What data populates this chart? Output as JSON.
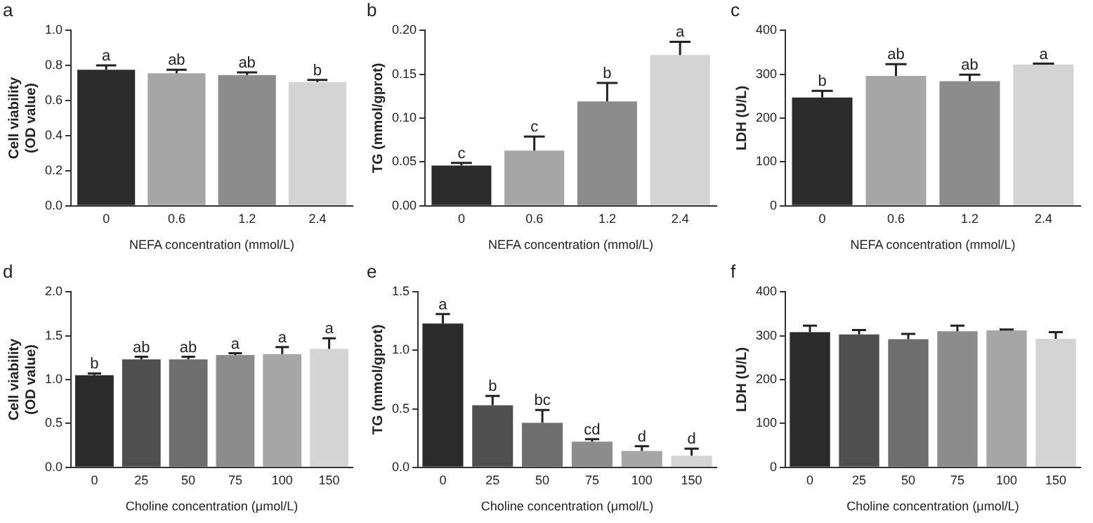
{
  "chart_data": [
    {
      "type": "bar",
      "title": "a",
      "categories": [
        "0",
        "0.6",
        "1.2",
        "2.4"
      ],
      "xlabel": "NEFA concentration (mmol/L)",
      "ylabel": "Cell viability\n(OD value)",
      "ylim": [
        0,
        1
      ],
      "yticks": [
        {
          "value": 0,
          "label": "0.0"
        },
        0.2,
        0.4,
        0.6,
        0.8,
        {
          "value": 1,
          "label": "1.0"
        }
      ],
      "grid": false,
      "series": [
        {
          "colors": [
            "#2b2b2b",
            "#a6a6a6",
            "#8c8c8c",
            "#d4d4d4"
          ],
          "values": [
            0.775,
            0.755,
            0.745,
            0.705
          ],
          "errors": [
            0.025,
            0.02,
            0.015,
            0.012
          ]
        }
      ],
      "annotations": [
        {
          "text": "a",
          "x": "0",
          "y": 0.8
        },
        {
          "text": "ab",
          "x": "0.6",
          "y": 0.775
        },
        {
          "text": "ab",
          "x": "1.2",
          "y": 0.76
        },
        {
          "text": "b",
          "x": "2.4",
          "y": 0.717
        }
      ]
    },
    {
      "type": "bar",
      "title": "b",
      "categories": [
        "0",
        "0.6",
        "1.2",
        "2.4"
      ],
      "xlabel": "NEFA concentration (mmol/L)",
      "ylabel": "TG (mmol/gprot)",
      "ylim": [
        0,
        0.2
      ],
      "yticks": [
        {
          "value": 0,
          "label": "0.00"
        },
        0.05,
        {
          "value": 0.1,
          "label": "0.10"
        },
        0.15,
        {
          "value": 0.2,
          "label": "0.20"
        }
      ],
      "grid": false,
      "series": [
        {
          "colors": [
            "#2b2b2b",
            "#a6a6a6",
            "#8c8c8c",
            "#d4d4d4"
          ],
          "values": [
            0.046,
            0.063,
            0.119,
            0.172
          ],
          "errors": [
            0.003,
            0.016,
            0.021,
            0.015
          ]
        }
      ],
      "annotations": [
        {
          "text": "c",
          "x": "0",
          "y": 0.049
        },
        {
          "text": "c",
          "x": "0.6",
          "y": 0.079
        },
        {
          "text": "b",
          "x": "1.2",
          "y": 0.14
        },
        {
          "text": "a",
          "x": "2.4",
          "y": 0.187
        }
      ]
    },
    {
      "type": "bar",
      "title": "c",
      "categories": [
        "0",
        "0.6",
        "1.2",
        "2.4"
      ],
      "xlabel": "NEFA concentration (mmol/L)",
      "ylabel": "LDH (U/L)",
      "ylim": [
        0,
        400
      ],
      "yticks": [
        0,
        100,
        200,
        300,
        400
      ],
      "grid": false,
      "series": [
        {
          "colors": [
            "#2b2b2b",
            "#a6a6a6",
            "#8c8c8c",
            "#d4d4d4"
          ],
          "values": [
            247,
            296,
            284,
            322
          ],
          "errors": [
            15,
            27,
            15,
            2
          ]
        }
      ],
      "annotations": [
        {
          "text": "b",
          "x": "0",
          "y": 262
        },
        {
          "text": "ab",
          "x": "0.6",
          "y": 323
        },
        {
          "text": "ab",
          "x": "1.2",
          "y": 299
        },
        {
          "text": "a",
          "x": "2.4",
          "y": 324
        }
      ]
    },
    {
      "type": "bar",
      "title": "d",
      "categories": [
        "0",
        "25",
        "50",
        "75",
        "100",
        "150"
      ],
      "xlabel": "Choline concentration (μmol/L)",
      "ylabel": "Cell viability\n(OD value)",
      "ylim": [
        0,
        2
      ],
      "yticks": [
        {
          "value": 0,
          "label": "0.0"
        },
        0.5,
        {
          "value": 1,
          "label": "1.0"
        },
        1.5,
        {
          "value": 2,
          "label": "2.0"
        }
      ],
      "grid": false,
      "series": [
        {
          "colors": [
            "#2b2b2b",
            "#4f4f4f",
            "#6e6e6e",
            "#8c8c8c",
            "#a6a6a6",
            "#d4d4d4"
          ],
          "values": [
            1.05,
            1.23,
            1.23,
            1.28,
            1.29,
            1.35
          ],
          "errors": [
            0.02,
            0.03,
            0.03,
            0.02,
            0.08,
            0.12
          ]
        }
      ],
      "annotations": [
        {
          "text": "b",
          "x": "0",
          "y": 1.07
        },
        {
          "text": "ab",
          "x": "25",
          "y": 1.26
        },
        {
          "text": "ab",
          "x": "50",
          "y": 1.26
        },
        {
          "text": "a",
          "x": "75",
          "y": 1.3
        },
        {
          "text": "a",
          "x": "100",
          "y": 1.37
        },
        {
          "text": "a",
          "x": "150",
          "y": 1.47
        }
      ]
    },
    {
      "type": "bar",
      "title": "e",
      "categories": [
        "0",
        "25",
        "50",
        "75",
        "100",
        "150"
      ],
      "xlabel": "Choline concentration (μmol/L)",
      "ylabel": "TG (mmol/gprot)",
      "ylim": [
        0,
        1.5
      ],
      "yticks": [
        {
          "value": 0,
          "label": "0.0"
        },
        0.5,
        {
          "value": 1,
          "label": "1.0"
        },
        1.5
      ],
      "grid": false,
      "series": [
        {
          "colors": [
            "#2b2b2b",
            "#4f4f4f",
            "#6e6e6e",
            "#8c8c8c",
            "#a6a6a6",
            "#d4d4d4"
          ],
          "values": [
            1.23,
            0.53,
            0.38,
            0.22,
            0.14,
            0.1
          ],
          "errors": [
            0.08,
            0.08,
            0.11,
            0.02,
            0.04,
            0.06
          ]
        }
      ],
      "annotations": [
        {
          "text": "a",
          "x": "0",
          "y": 1.31
        },
        {
          "text": "b",
          "x": "25",
          "y": 0.61
        },
        {
          "text": "bc",
          "x": "50",
          "y": 0.49
        },
        {
          "text": "cd",
          "x": "75",
          "y": 0.24
        },
        {
          "text": "d",
          "x": "100",
          "y": 0.18
        },
        {
          "text": "d",
          "x": "150",
          "y": 0.16
        }
      ]
    },
    {
      "type": "bar",
      "title": "f",
      "categories": [
        "0",
        "25",
        "50",
        "75",
        "100",
        "150"
      ],
      "xlabel": "Choline concentration (μmol/L)",
      "ylabel": "LDH (U/L)",
      "ylim": [
        0,
        400
      ],
      "yticks": [
        0,
        100,
        200,
        300,
        400
      ],
      "grid": false,
      "series": [
        {
          "colors": [
            "#2b2b2b",
            "#4f4f4f",
            "#6e6e6e",
            "#8c8c8c",
            "#a6a6a6",
            "#d4d4d4"
          ],
          "values": [
            308,
            303,
            292,
            310,
            312,
            293
          ],
          "errors": [
            15,
            10,
            12,
            13,
            2,
            15
          ]
        }
      ]
    }
  ]
}
